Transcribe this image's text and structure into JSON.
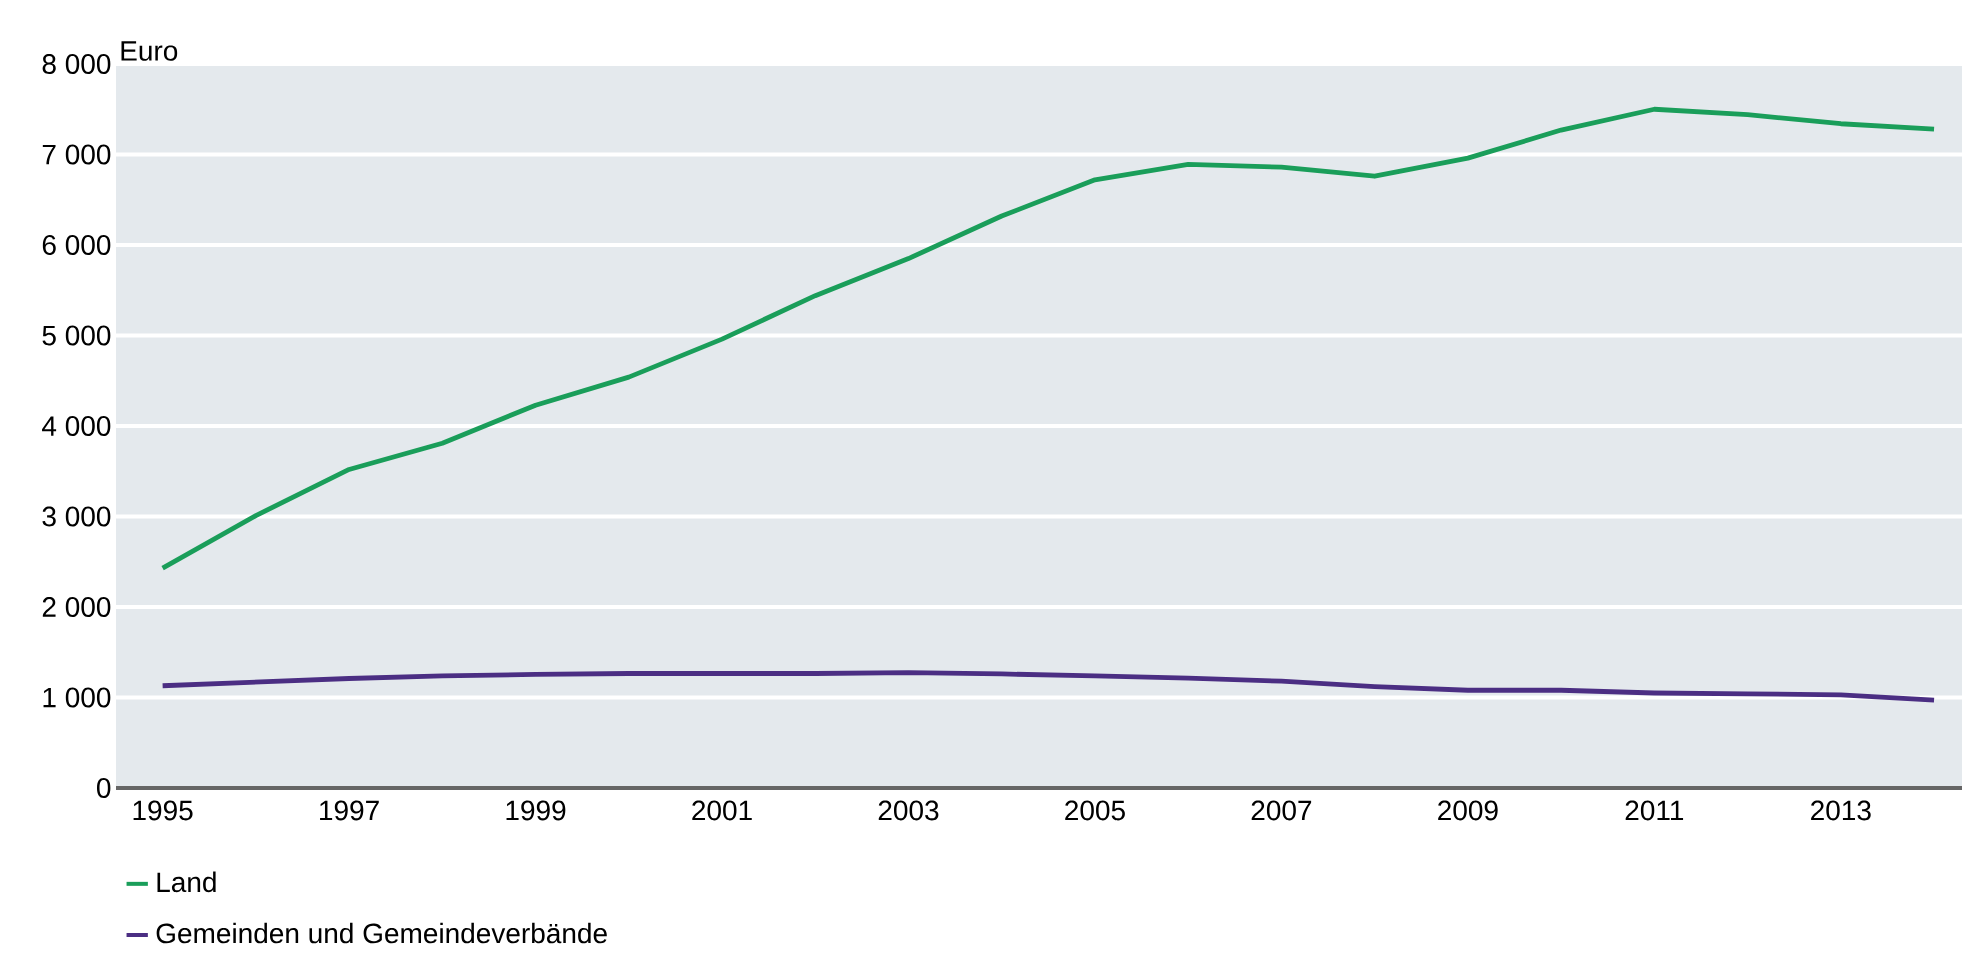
{
  "chart_data": {
    "type": "line",
    "ylabel": "Euro",
    "x": [
      1995,
      1996,
      1997,
      1998,
      1999,
      2000,
      2001,
      2002,
      2003,
      2004,
      2005,
      2006,
      2007,
      2008,
      2009,
      2010,
      2011,
      2012,
      2013,
      2014
    ],
    "series": [
      {
        "name": "Land",
        "color": "#1a9e5a",
        "values": [
          2430,
          3010,
          3520,
          3810,
          4230,
          4540,
          4960,
          5440,
          5850,
          6320,
          6720,
          6890,
          6860,
          6760,
          6960,
          7270,
          7500,
          7440,
          7340,
          7280
        ]
      },
      {
        "name": "Gemeinden und Gemeindeverbände",
        "color": "#4b2e83",
        "values": [
          1130,
          1170,
          1210,
          1240,
          1255,
          1265,
          1265,
          1265,
          1275,
          1260,
          1240,
          1215,
          1180,
          1120,
          1080,
          1080,
          1050,
          1040,
          1030,
          970
        ]
      }
    ],
    "xlim": [
      1994.5,
      2014.3
    ],
    "xticks": [
      1995,
      1997,
      1999,
      2001,
      2003,
      2005,
      2007,
      2009,
      2011,
      2013
    ],
    "ylim": [
      0,
      8000
    ],
    "yticks": [
      0,
      {
        "value": 1000,
        "label": "1 000"
      },
      {
        "value": 2000,
        "label": "2 000"
      },
      {
        "value": 3000,
        "label": "3 000"
      },
      {
        "value": 4000,
        "label": "4 000"
      },
      {
        "value": 5000,
        "label": "5 000"
      },
      {
        "value": 6000,
        "label": "6 000"
      },
      {
        "value": 7000,
        "label": "7 000"
      },
      {
        "value": 8000,
        "label": "8 000"
      }
    ],
    "grid": "y",
    "legend": "bottom left",
    "marker": "none",
    "line_style": "solid"
  }
}
